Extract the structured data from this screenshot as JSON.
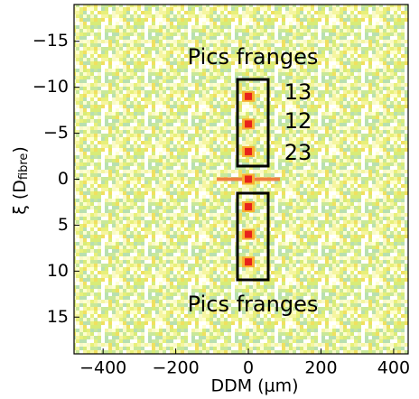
{
  "chart_data": {
    "type": "heatmap",
    "xlabel": "DDM (μm)",
    "ylabel": "ξ (D",
    "ylabel_sub": "fibre",
    "ylabel_end": ")",
    "xlim": [
      -480,
      440
    ],
    "ylim": [
      -19,
      19
    ],
    "y_inverted": true,
    "xticks": [
      {
        "value": -400,
        "label": "−400"
      },
      {
        "value": -200,
        "label": "−200"
      },
      0,
      200,
      400
    ],
    "yticks": [
      {
        "value": -15,
        "label": "−15"
      },
      {
        "value": -10,
        "label": "−10"
      },
      {
        "value": -5,
        "label": "−5"
      },
      0,
      5,
      10,
      15
    ],
    "peaks": {
      "x": [
        0,
        0,
        0,
        0,
        0,
        0,
        0
      ],
      "y": [
        -9,
        -6,
        -3,
        0,
        3,
        6,
        9
      ],
      "color": "#e8221b"
    },
    "annotations": [
      "Pics franges",
      "13",
      "12",
      "23",
      "Pics franges"
    ]
  }
}
